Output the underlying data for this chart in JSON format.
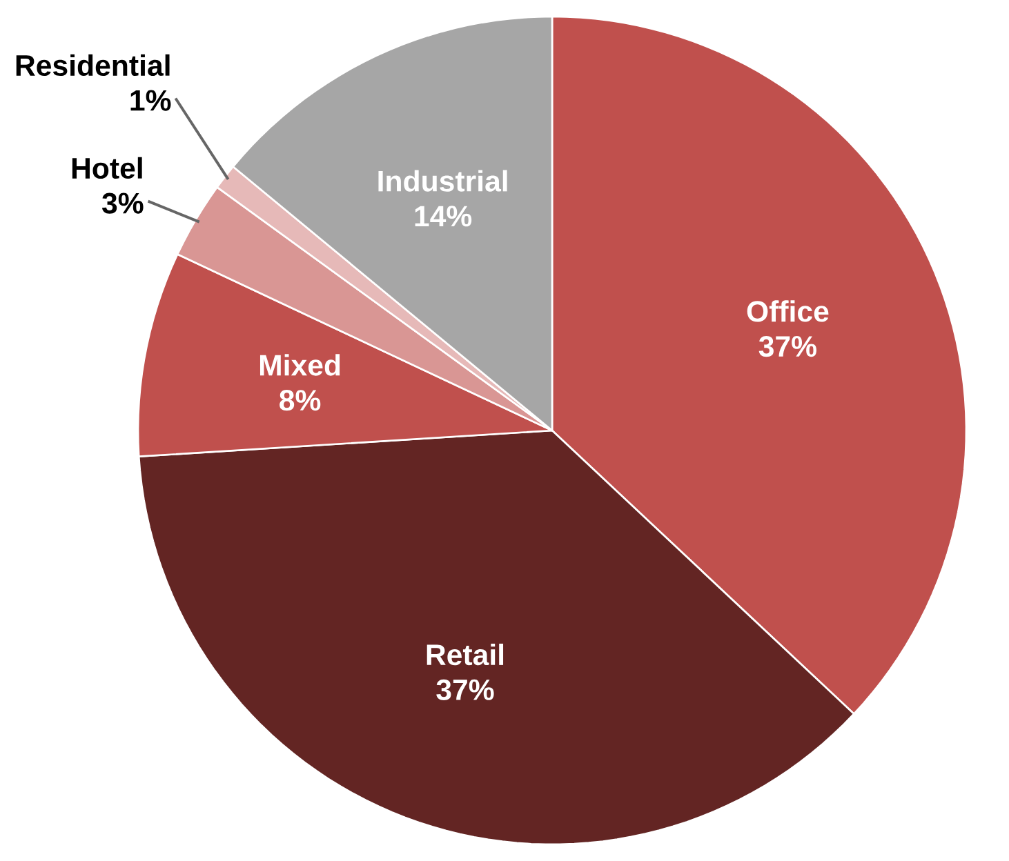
{
  "chart_data": {
    "type": "pie",
    "categories": [
      "Office",
      "Retail",
      "Mixed",
      "Hotel",
      "Residential",
      "Industrial"
    ],
    "values": [
      37,
      37,
      8,
      3,
      1,
      14
    ],
    "value_labels": [
      "37%",
      "37%",
      "8%",
      "3%",
      "1%",
      "14%"
    ],
    "colors": [
      "#c0504d",
      "#632523",
      "#c0504d",
      "#d99694",
      "#e6b9b8",
      "#a6a6a6"
    ]
  }
}
